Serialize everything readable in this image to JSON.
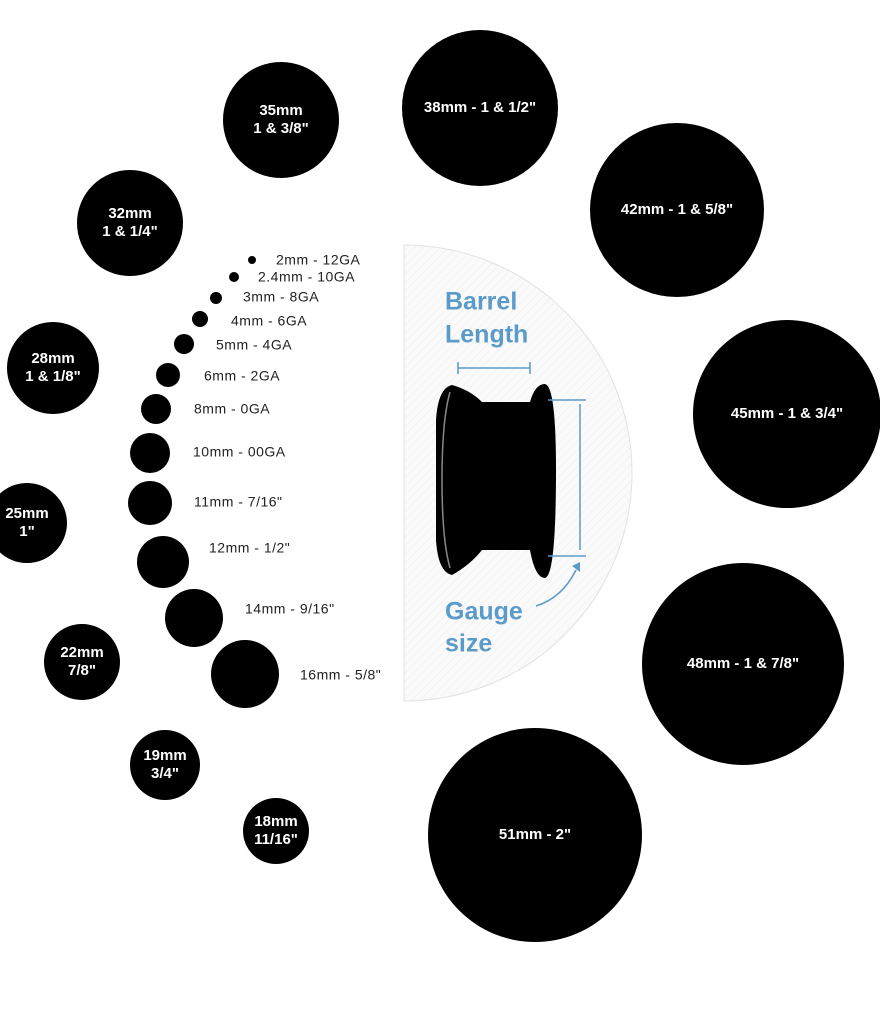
{
  "gauges": [
    {
      "label": "2mm - 12GA"
    },
    {
      "label": "2.4mm - 10GA"
    },
    {
      "label": "3mm - 8GA"
    },
    {
      "label": "4mm - 6GA"
    },
    {
      "label": "5mm - 4GA"
    },
    {
      "label": "6mm - 2GA"
    },
    {
      "label": "8mm - 0GA"
    },
    {
      "label": "10mm - 00GA"
    },
    {
      "label": "11mm - 7/16\""
    },
    {
      "label": "12mm - 1/2\""
    },
    {
      "label": "14mm - 9/16\""
    },
    {
      "label": "16mm - 5/8\""
    }
  ],
  "sizes": [
    {
      "lines": [
        "35mm",
        "1 & 3/8\""
      ]
    },
    {
      "lines": [
        "38mm - 1 & 1/2\""
      ]
    },
    {
      "lines": [
        "42mm - 1 & 5/8\""
      ]
    },
    {
      "lines": [
        "32mm",
        "1 & 1/4\""
      ]
    },
    {
      "lines": [
        "28mm",
        "1 & 1/8\""
      ]
    },
    {
      "lines": [
        "45mm - 1 & 3/4\""
      ]
    },
    {
      "lines": [
        "25mm",
        "1\""
      ]
    },
    {
      "lines": [
        "48mm - 1 & 7/8\""
      ]
    },
    {
      "lines": [
        "22mm",
        "7/8\""
      ]
    },
    {
      "lines": [
        "19mm",
        "3/4\""
      ]
    },
    {
      "lines": [
        "18mm",
        "11/16\""
      ]
    },
    {
      "lines": [
        "51mm - 2\""
      ]
    }
  ],
  "diagram": {
    "barrel_label": [
      "Barrel",
      "Length"
    ],
    "gauge_label": [
      "Gauge",
      "size"
    ]
  }
}
